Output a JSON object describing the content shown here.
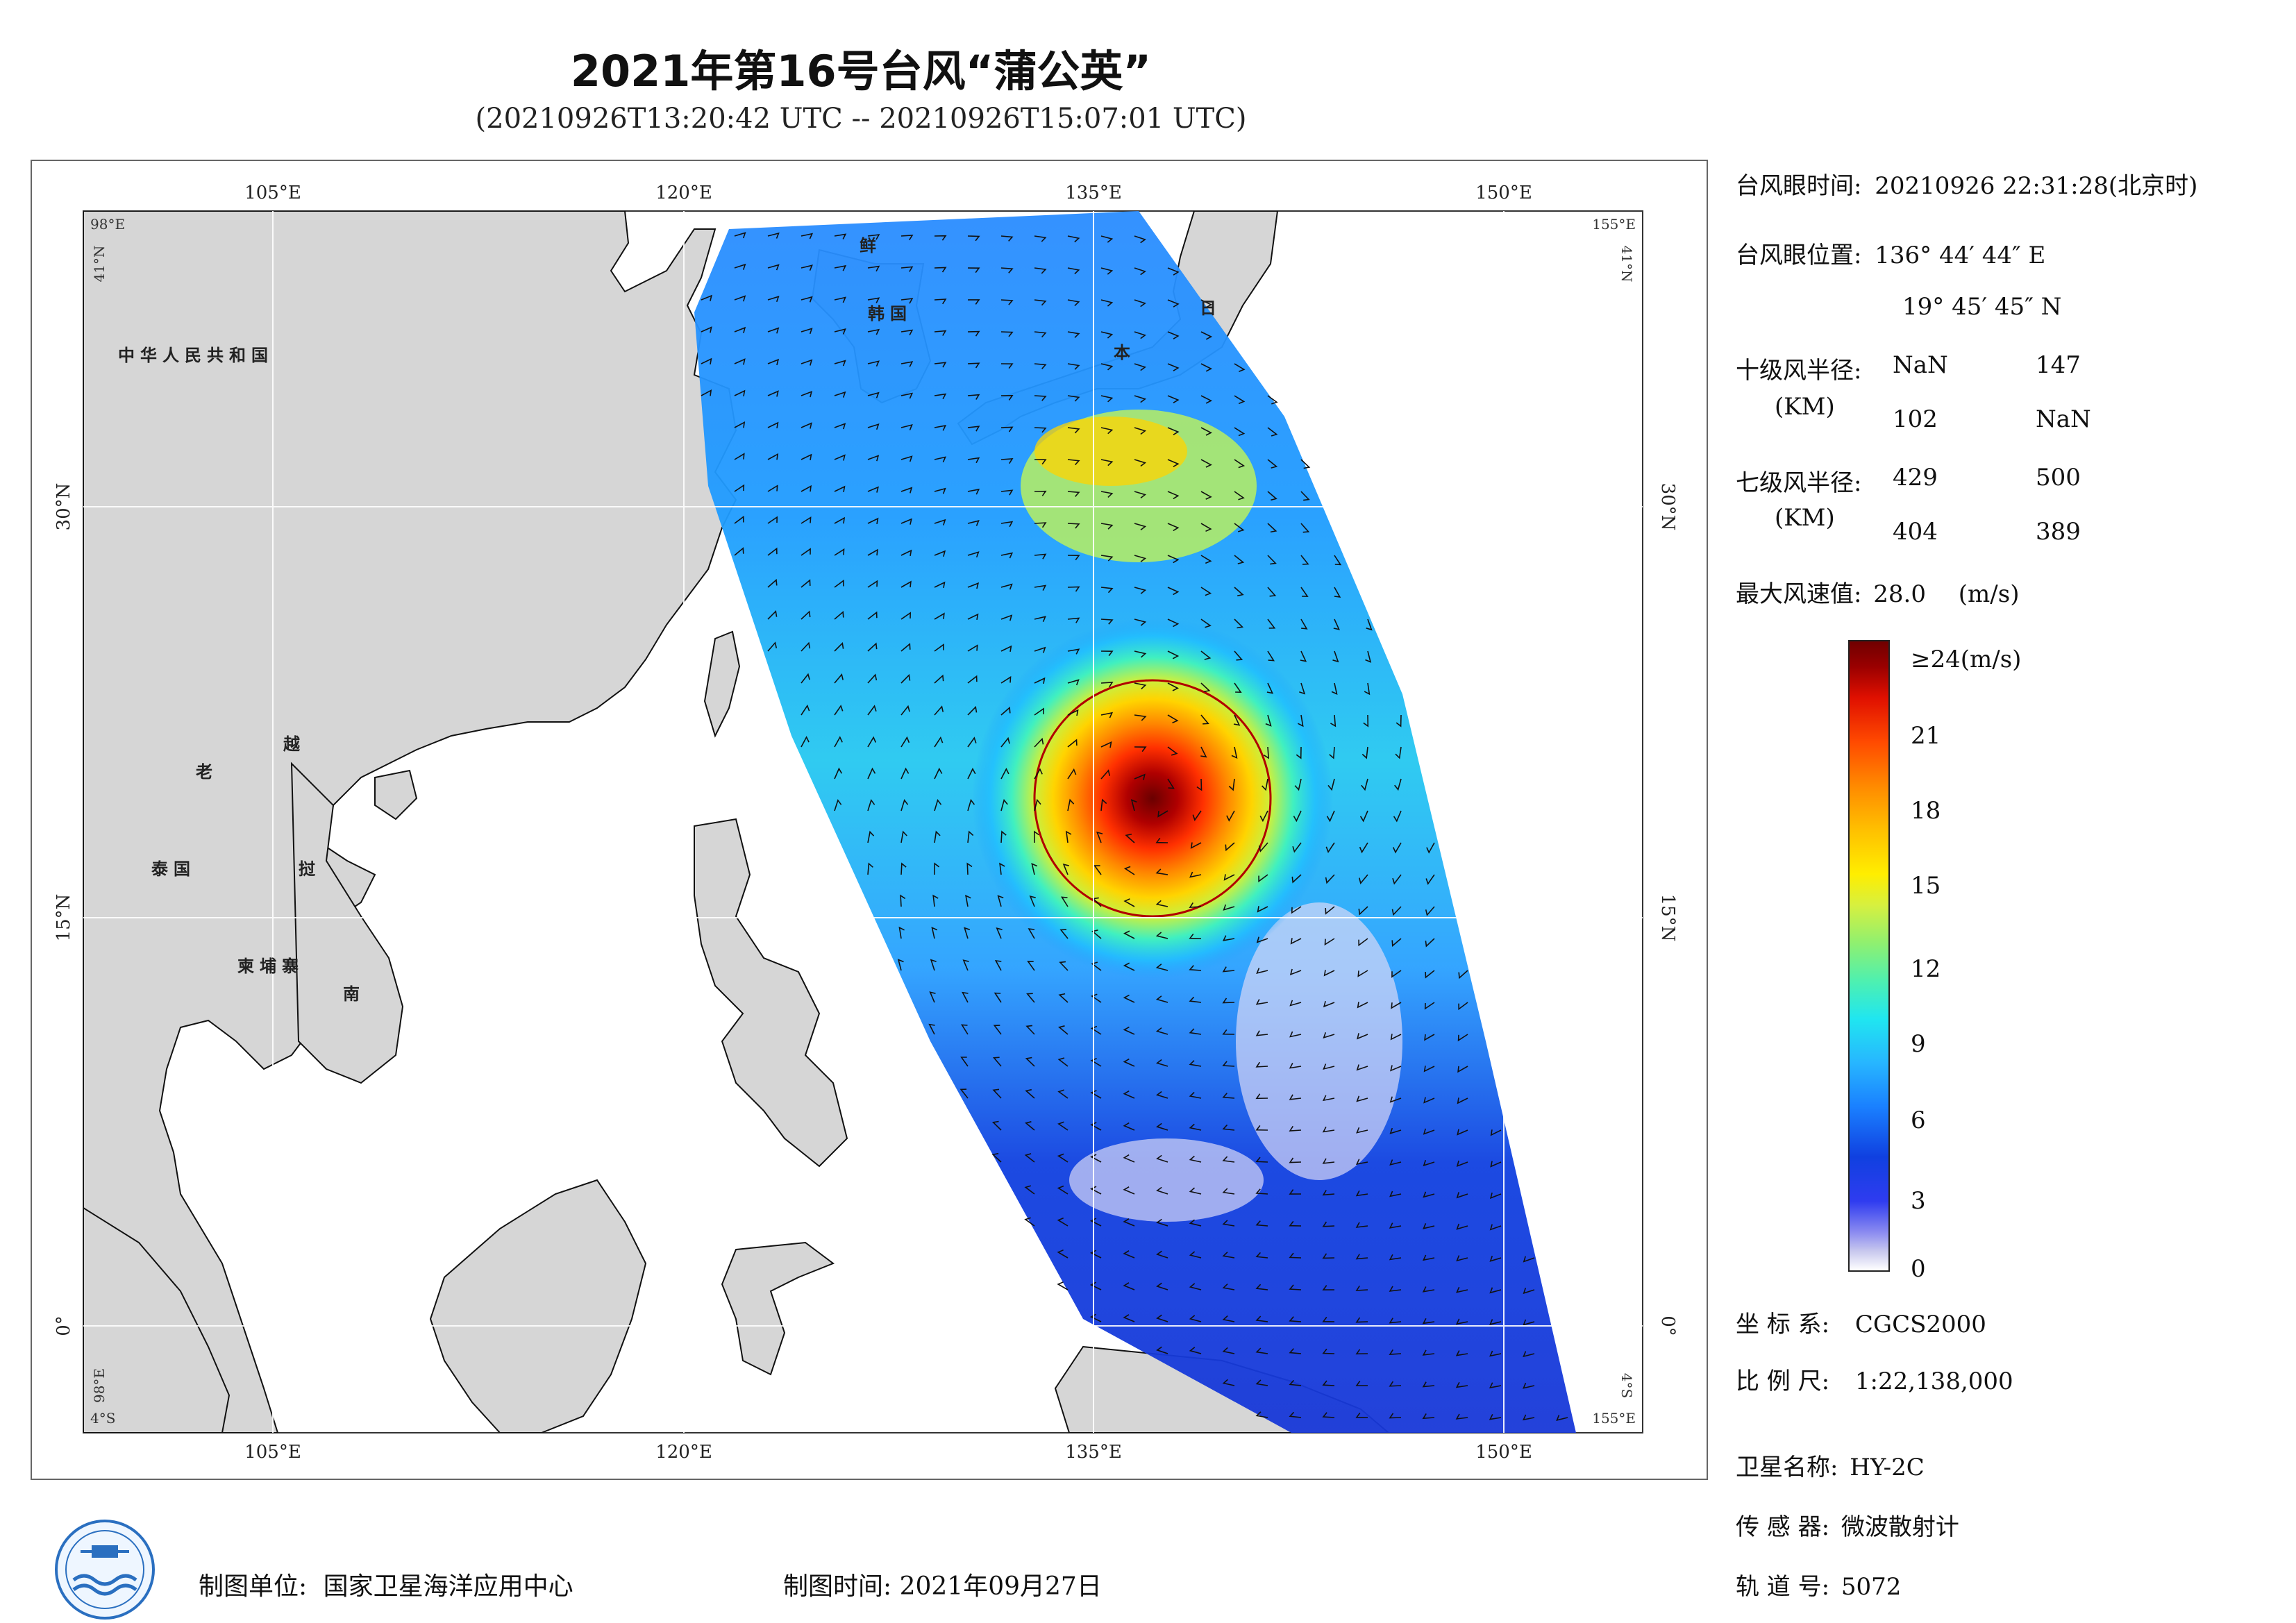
{
  "header": {
    "title": "2021年第16号台风“蒲公英”",
    "subtitle": "(20210926T13:20:42 UTC -- 20210926T15:07:01 UTC)"
  },
  "map": {
    "lon_labels": [
      "105°E",
      "120°E",
      "135°E",
      "150°E"
    ],
    "lat_labels": [
      "30°N",
      "15°N",
      "0°"
    ],
    "corner_labels": {
      "top_left": "98°E",
      "top_left_lat": "41°N",
      "top_right": "155°E",
      "top_right_lat": "41°N",
      "bottom_left": "4°S",
      "bottom_left_lon": "98°E",
      "bottom_right": "155°E",
      "bottom_right_lat": "4°S"
    },
    "country_labels": {
      "china": "中华人民共和国",
      "korea_north": "鲜",
      "korea_south": "韩国",
      "japan_1": "日",
      "japan_2": "本",
      "laos": "老",
      "vietnam_1": "越",
      "vietnam_2": "南",
      "thailand": "泰国",
      "cambodia": "柬埔寨",
      "vietnam_mid": "挝"
    },
    "lon_range": [
      98,
      155
    ],
    "lat_range": [
      -4,
      41
    ],
    "typhoon_center": {
      "lon": 136.7456,
      "lat": 19.7625
    }
  },
  "info": {
    "eye_time_label": "台风眼时间:",
    "eye_time_value": "20210926 22:31:28(北京时)",
    "eye_pos_label": "台风眼位置:",
    "eye_pos_lon": "136° 44′ 44″ E",
    "eye_pos_lat": "19° 45′ 45″ N",
    "r10_label": "十级风半径:",
    "r10_unit": "(KM)",
    "r10_values": [
      "NaN",
      "147",
      "102",
      "NaN"
    ],
    "r7_label": "七级风半径:",
    "r7_unit": "(KM)",
    "r7_values": [
      "429",
      "500",
      "404",
      "389"
    ],
    "max_wind_label": "最大风速值:",
    "max_wind_value": "28.0",
    "max_wind_unit": "(m/s)"
  },
  "colorbar": {
    "ticks": [
      "≥24(m/s)",
      "21",
      "18",
      "15",
      "12",
      "9",
      "6",
      "3",
      "0"
    ]
  },
  "meta": {
    "coord_label": "坐 标 系:",
    "coord_value": "CGCS2000",
    "scale_label": "比 例 尺:",
    "scale_value": "1:22,138,000",
    "sat_label": "卫星名称:",
    "sat_value": "HY-2C",
    "sensor_label": "传 感 器:",
    "sensor_value": "微波散射计",
    "orbit_label": "轨 道 号:",
    "orbit_value": "5072"
  },
  "footer": {
    "unit_label": "制图单位:",
    "unit_value": "国家卫星海洋应用中心",
    "time_label": "制图时间:",
    "time_value": "2021年09月27日"
  }
}
